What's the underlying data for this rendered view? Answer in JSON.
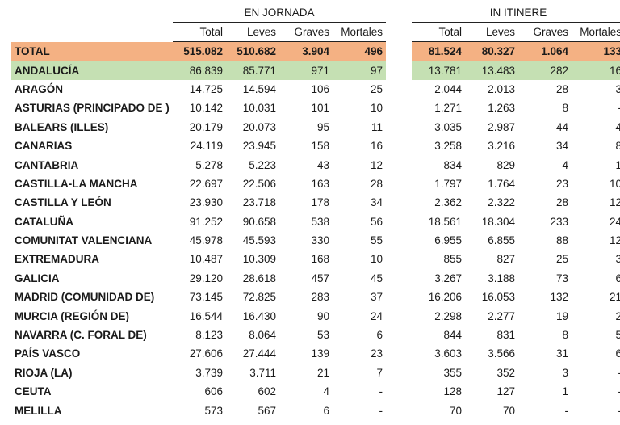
{
  "groups": {
    "en_jornada": "EN JORNADA",
    "in_itinere": "IN ITINERE"
  },
  "columns": [
    "Total",
    "Leves",
    "Graves",
    "Mortales"
  ],
  "rows": [
    {
      "name": "TOTAL",
      "j": [
        "515.082",
        "510.682",
        "3.904",
        "496"
      ],
      "i": [
        "81.524",
        "80.327",
        "1.064",
        "133"
      ]
    },
    {
      "name": "ANDALUCÍA",
      "j": [
        "86.839",
        "85.771",
        "971",
        "97"
      ],
      "i": [
        "13.781",
        "13.483",
        "282",
        "16"
      ]
    },
    {
      "name": "ARAGÓN",
      "j": [
        "14.725",
        "14.594",
        "106",
        "25"
      ],
      "i": [
        "2.044",
        "2.013",
        "28",
        "3"
      ]
    },
    {
      "name": "ASTURIAS (PRINCIPADO DE )",
      "j": [
        "10.142",
        "10.031",
        "101",
        "10"
      ],
      "i": [
        "1.271",
        "1.263",
        "8",
        "-"
      ]
    },
    {
      "name": "BALEARS (ILLES)",
      "j": [
        "20.179",
        "20.073",
        "95",
        "11"
      ],
      "i": [
        "3.035",
        "2.987",
        "44",
        "4"
      ]
    },
    {
      "name": "CANARIAS",
      "j": [
        "24.119",
        "23.945",
        "158",
        "16"
      ],
      "i": [
        "3.258",
        "3.216",
        "34",
        "8"
      ]
    },
    {
      "name": "CANTABRIA",
      "j": [
        "5.278",
        "5.223",
        "43",
        "12"
      ],
      "i": [
        "834",
        "829",
        "4",
        "1"
      ]
    },
    {
      "name": "CASTILLA-LA MANCHA",
      "j": [
        "22.697",
        "22.506",
        "163",
        "28"
      ],
      "i": [
        "1.797",
        "1.764",
        "23",
        "10"
      ]
    },
    {
      "name": "CASTILLA Y LEÓN",
      "j": [
        "23.930",
        "23.718",
        "178",
        "34"
      ],
      "i": [
        "2.362",
        "2.322",
        "28",
        "12"
      ]
    },
    {
      "name": "CATALUÑA",
      "j": [
        "91.252",
        "90.658",
        "538",
        "56"
      ],
      "i": [
        "18.561",
        "18.304",
        "233",
        "24"
      ]
    },
    {
      "name": "COMUNITAT VALENCIANA",
      "j": [
        "45.978",
        "45.593",
        "330",
        "55"
      ],
      "i": [
        "6.955",
        "6.855",
        "88",
        "12"
      ]
    },
    {
      "name": "EXTREMADURA",
      "j": [
        "10.487",
        "10.309",
        "168",
        "10"
      ],
      "i": [
        "855",
        "827",
        "25",
        "3"
      ]
    },
    {
      "name": "GALICIA",
      "j": [
        "29.120",
        "28.618",
        "457",
        "45"
      ],
      "i": [
        "3.267",
        "3.188",
        "73",
        "6"
      ]
    },
    {
      "name": "MADRID (COMUNIDAD DE)",
      "j": [
        "73.145",
        "72.825",
        "283",
        "37"
      ],
      "i": [
        "16.206",
        "16.053",
        "132",
        "21"
      ]
    },
    {
      "name": "MURCIA (REGIÓN DE)",
      "j": [
        "16.544",
        "16.430",
        "90",
        "24"
      ],
      "i": [
        "2.298",
        "2.277",
        "19",
        "2"
      ]
    },
    {
      "name": "NAVARRA (C. FORAL DE)",
      "j": [
        "8.123",
        "8.064",
        "53",
        "6"
      ],
      "i": [
        "844",
        "831",
        "8",
        "5"
      ]
    },
    {
      "name": "PAÍS VASCO",
      "j": [
        "27.606",
        "27.444",
        "139",
        "23"
      ],
      "i": [
        "3.603",
        "3.566",
        "31",
        "6"
      ]
    },
    {
      "name": "RIOJA (LA)",
      "j": [
        "3.739",
        "3.711",
        "21",
        "7"
      ],
      "i": [
        "355",
        "352",
        "3",
        "-"
      ]
    },
    {
      "name": "CEUTA",
      "j": [
        "606",
        "602",
        "4",
        "-"
      ],
      "i": [
        "128",
        "127",
        "1",
        "-"
      ]
    },
    {
      "name": "MELILLA",
      "j": [
        "573",
        "567",
        "6",
        "-"
      ],
      "i": [
        "70",
        "70",
        "-",
        "-"
      ]
    }
  ],
  "colors": {
    "total_bg": "#f4b183",
    "highlight_bg": "#c5e0b3"
  }
}
